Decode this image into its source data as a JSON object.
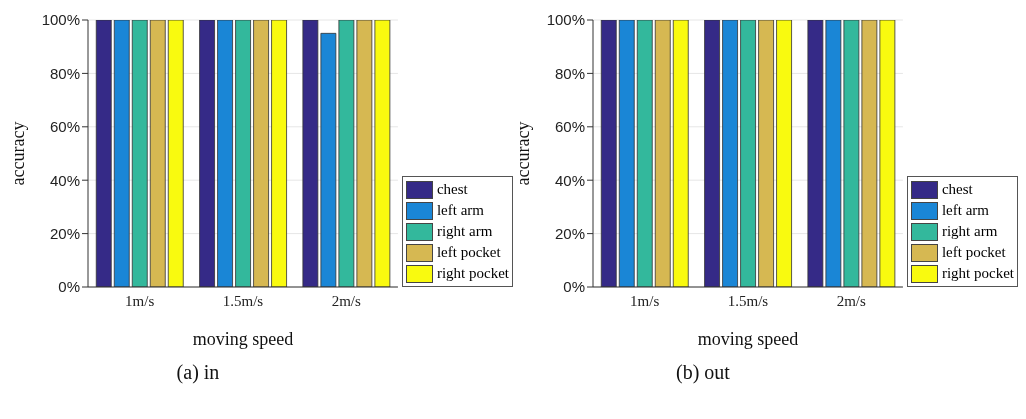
{
  "chart_data": [
    {
      "type": "bar",
      "title": "(a)  in",
      "xlabel": "moving speed",
      "ylabel": "accuracy",
      "categories": [
        "1m/s",
        "1.5m/s",
        "2m/s"
      ],
      "series": [
        {
          "name": "chest",
          "color": "#352a87",
          "values": [
            100,
            100,
            100
          ]
        },
        {
          "name": "left arm",
          "color": "#1a86d6",
          "values": [
            100,
            100,
            95
          ]
        },
        {
          "name": "right arm",
          "color": "#33b89c",
          "values": [
            100,
            100,
            100
          ]
        },
        {
          "name": "left pocket",
          "color": "#d6b852",
          "values": [
            100,
            100,
            100
          ]
        },
        {
          "name": "right pocket",
          "color": "#f9fa0f",
          "values": [
            100,
            100,
            100
          ]
        }
      ],
      "ylim": [
        0,
        100
      ],
      "yticks": [
        {
          "value": 0,
          "label": "0%"
        },
        {
          "value": 20,
          "label": "20%"
        },
        {
          "value": 40,
          "label": "40%"
        },
        {
          "value": 60,
          "label": "60%"
        },
        {
          "value": 80,
          "label": "80%"
        },
        {
          "value": 100,
          "label": "100%"
        }
      ],
      "grid": "y",
      "legend": "bottom right"
    },
    {
      "type": "bar",
      "title": "(b) out",
      "xlabel": "moving speed",
      "ylabel": "accuracy",
      "categories": [
        "1m/s",
        "1.5m/s",
        "2m/s"
      ],
      "series": [
        {
          "name": "chest",
          "color": "#352a87",
          "values": [
            100,
            100,
            100
          ]
        },
        {
          "name": "left arm",
          "color": "#1a86d6",
          "values": [
            100,
            100,
            100
          ]
        },
        {
          "name": "right arm",
          "color": "#33b89c",
          "values": [
            100,
            100,
            100
          ]
        },
        {
          "name": "left pocket",
          "color": "#d6b852",
          "values": [
            100,
            100,
            100
          ]
        },
        {
          "name": "right pocket",
          "color": "#f9fa0f",
          "values": [
            100,
            100,
            100
          ]
        }
      ],
      "ylim": [
        0,
        100
      ],
      "yticks": [
        {
          "value": 0,
          "label": "0%"
        },
        {
          "value": 20,
          "label": "20%"
        },
        {
          "value": 40,
          "label": "40%"
        },
        {
          "value": 60,
          "label": "60%"
        },
        {
          "value": 80,
          "label": "80%"
        },
        {
          "value": 100,
          "label": "100%"
        }
      ],
      "grid": "y",
      "legend": "bottom right"
    }
  ]
}
